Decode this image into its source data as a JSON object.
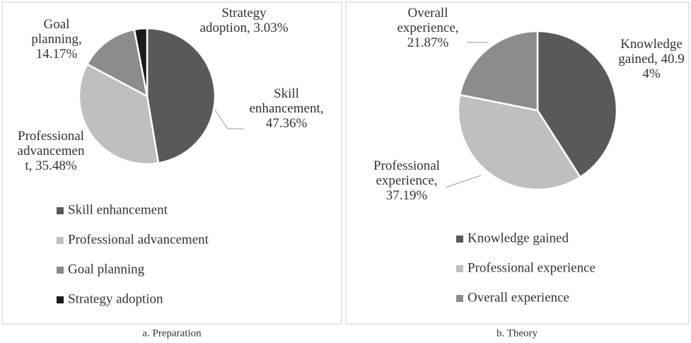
{
  "chart_data": [
    {
      "type": "pie",
      "caption": "a. Preparation",
      "categories": [
        "Skill enhancement",
        "Professional advancement",
        "Goal planning",
        "Strategy adoption"
      ],
      "values": [
        47.36,
        35.48,
        14.17,
        3.03
      ],
      "value_labels": [
        "Skill enhancement, 47.36%",
        "Professional advancement, 35.48%",
        "Goal planning, 14.17%",
        "Strategy adoption, 3.03%"
      ],
      "colors": [
        "#595959",
        "#bfbfbf",
        "#8c8c8c",
        "#1a1a1a"
      ],
      "legend": "bottom"
    },
    {
      "type": "pie",
      "caption": "b. Theory",
      "categories": [
        "Knowledge gained",
        "Professional experience",
        "Overall experience"
      ],
      "values": [
        40.94,
        37.19,
        21.87
      ],
      "value_labels": [
        "Knowledge gained, 40.94%",
        "Professional experience, 37.19%",
        "Overall experience, 21.87%"
      ],
      "colors": [
        "#595959",
        "#bfbfbf",
        "#8c8c8c"
      ],
      "legend": "bottom"
    }
  ]
}
